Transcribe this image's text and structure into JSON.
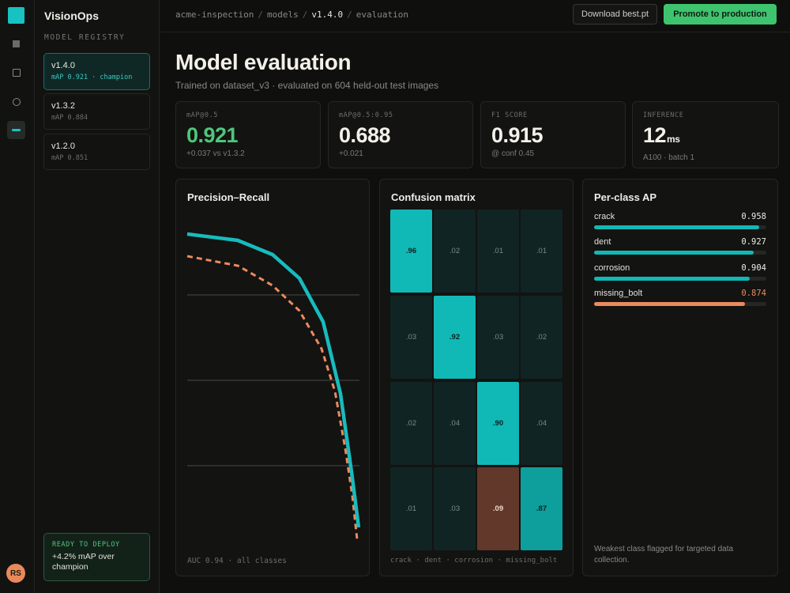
{
  "app": {
    "name": "VisionOps"
  },
  "rail": {
    "icons": [
      "grid-icon",
      "box-icon",
      "circle-icon",
      "dash-icon"
    ],
    "avatar_initials": "RS"
  },
  "sidebar": {
    "section_label": "MODEL REGISTRY",
    "models": [
      {
        "name": "v1.4.0",
        "map": "mAP 0.921 · champion"
      },
      {
        "name": "v1.3.2",
        "map": "mAP 0.884"
      },
      {
        "name": "v1.2.0",
        "map": "mAP 0.851"
      }
    ],
    "deploy": {
      "label": "READY TO DEPLOY",
      "text": "+4.2% mAP over champion"
    }
  },
  "topbar": {
    "breadcrumb": [
      "acme-inspection",
      "models",
      "v1.4.0",
      "evaluation"
    ],
    "download_label": "Download best.pt",
    "promote_label": "Promote to production"
  },
  "header": {
    "title": "Model evaluation",
    "subtitle": "Trained on dataset_v3 · evaluated on 604 held-out test images"
  },
  "kpis": [
    {
      "label": "mAP@0.5",
      "value": "0.921",
      "unit": "",
      "note": "+0.037 vs v1.3.2"
    },
    {
      "label": "mAP@0.5:0.95",
      "value": "0.688",
      "unit": "",
      "note": "+0.021"
    },
    {
      "label": "F1 SCORE",
      "value": "0.915",
      "unit": "",
      "note": "@ conf 0.45"
    },
    {
      "label": "INFERENCE",
      "value": "12",
      "unit": "ms",
      "note": "A100 · batch 1"
    }
  ],
  "pr": {
    "title": "Precision–Recall",
    "footer": "AUC 0.94 · all classes",
    "colors": {
      "current": "#17bcbd",
      "previous": "#ee8a5c"
    }
  },
  "confusion": {
    "title": "Confusion matrix",
    "footer": "crack · dent · corrosion · missing_bolt",
    "cells": [
      [
        ".96",
        ".02",
        ".01",
        ".01"
      ],
      [
        ".03",
        ".92",
        ".03",
        ".02"
      ],
      [
        ".02",
        ".04",
        ".90",
        ".04"
      ],
      [
        ".01",
        ".03",
        ".09",
        ".87"
      ]
    ]
  },
  "per_class": {
    "title": "Per-class AP",
    "classes": [
      {
        "name": "crack",
        "value": "0.958",
        "ap": 0.958,
        "warn": false
      },
      {
        "name": "dent",
        "value": "0.927",
        "ap": 0.927,
        "warn": false
      },
      {
        "name": "corrosion",
        "value": "0.904",
        "ap": 0.904,
        "warn": false
      },
      {
        "name": "missing_bolt",
        "value": "0.874",
        "ap": 0.874,
        "warn": true
      }
    ],
    "footer": "Weakest class flagged for targeted data collection."
  },
  "colors": {
    "accent": "#17c2c0",
    "success": "#3ec46e",
    "warning": "#ea8a5e"
  }
}
